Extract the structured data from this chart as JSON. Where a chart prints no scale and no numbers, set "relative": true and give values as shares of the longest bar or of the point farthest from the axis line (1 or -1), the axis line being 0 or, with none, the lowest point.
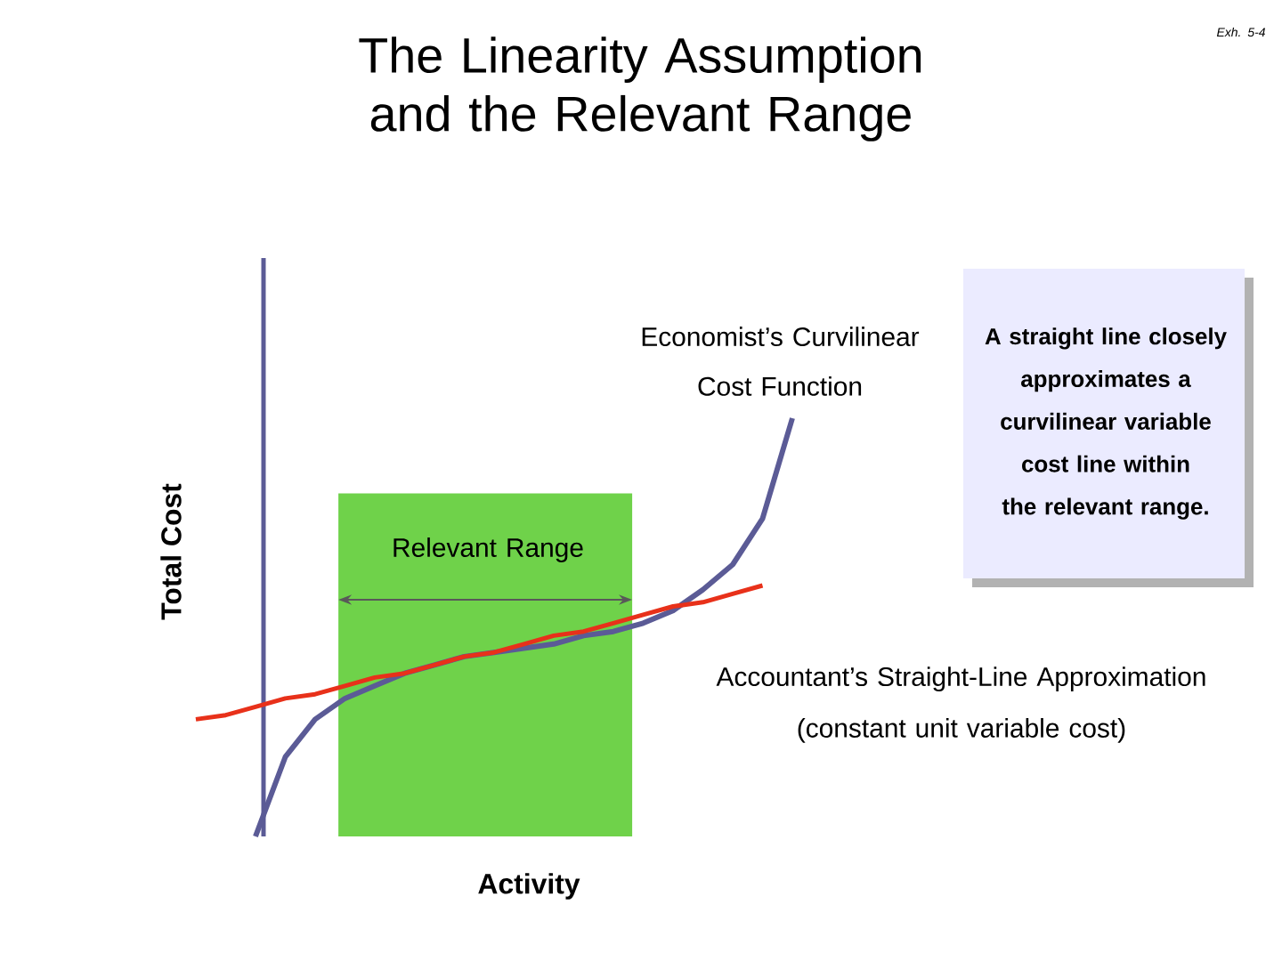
{
  "chart_data": {
    "type": "line",
    "relative": true,
    "title": "The Linearity Assumption and the Relevant Range",
    "xlabel": "Activity",
    "ylabel": "Total Cost",
    "categories": [
      null,
      null,
      null,
      null,
      null,
      null,
      null,
      null,
      null,
      null,
      null,
      null,
      null,
      null,
      null,
      null,
      null,
      null,
      null,
      null,
      null
    ],
    "series": [
      {
        "color": "#5b5b96",
        "values": [
          null,
          null,
          0,
          0.19,
          0.28,
          0.33,
          0.36,
          0.39,
          0.41,
          0.43,
          0.44,
          0.45,
          0.46,
          0.48,
          0.49,
          0.51,
          0.54,
          0.59,
          0.65,
          0.76,
          1.0
        ]
      },
      {
        "color": "#e8311a",
        "values": [
          0.28,
          0.29,
          0.31,
          0.33,
          0.34,
          0.36,
          0.38,
          0.39,
          0.41,
          0.43,
          0.44,
          0.46,
          0.48,
          0.49,
          0.51,
          0.53,
          0.55,
          0.56,
          0.58,
          0.6,
          null
        ]
      }
    ],
    "annotations": [
      "Relevant Range",
      "Economist’s Curvilinear Cost Function",
      "A straight line closely approximates a curvilinear variable cost line within the relevant range.",
      "Accountant’s Straight-Line Approximation (constant unit variable cost)",
      "Exh. 5-4"
    ]
  }
}
